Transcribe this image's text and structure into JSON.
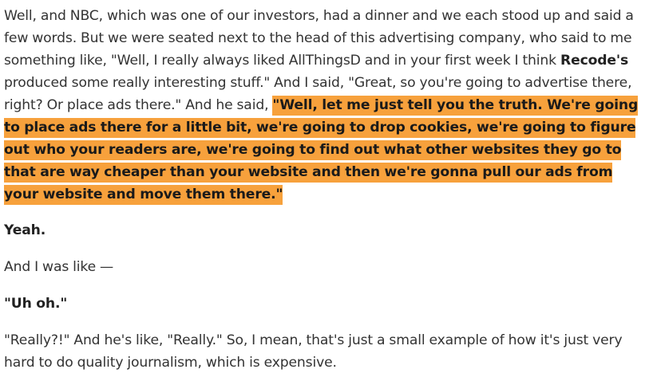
{
  "transcript": {
    "paragraph_1": {
      "text_a": "Well, and NBC, which was one of our investors, had a dinner and we each stood up and said a few words. But we were seated next to the head of this advertising company, who said to me something like, \"Well, I really always liked AllThingsD and in your first week I think ",
      "bold_brand": "Recode's",
      "text_b": " produced some really interesting stuff.\" And I said, \"Great, so you're going to advertise there, right? Or place ads there.\" And he said, ",
      "highlighted_quote": "\"Well, let me just tell you the truth. We're going to place ads there for a little bit, we're going to drop cookies, we're going to figure out who your readers are, we're going to find out what other websites they go to that are way cheaper than your website and then we're gonna pull our ads from your website and move them there.\"",
      "highlight_color": "#f7a13c"
    },
    "paragraph_2": "Yeah.",
    "paragraph_3": "And I was like —",
    "paragraph_4": "\"Uh oh.\"",
    "paragraph_5": "\"Really?!\" And he's like, \"Really.\" So, I mean, that's just a small example of how it's just very hard to do quality journalism, which is expensive."
  }
}
